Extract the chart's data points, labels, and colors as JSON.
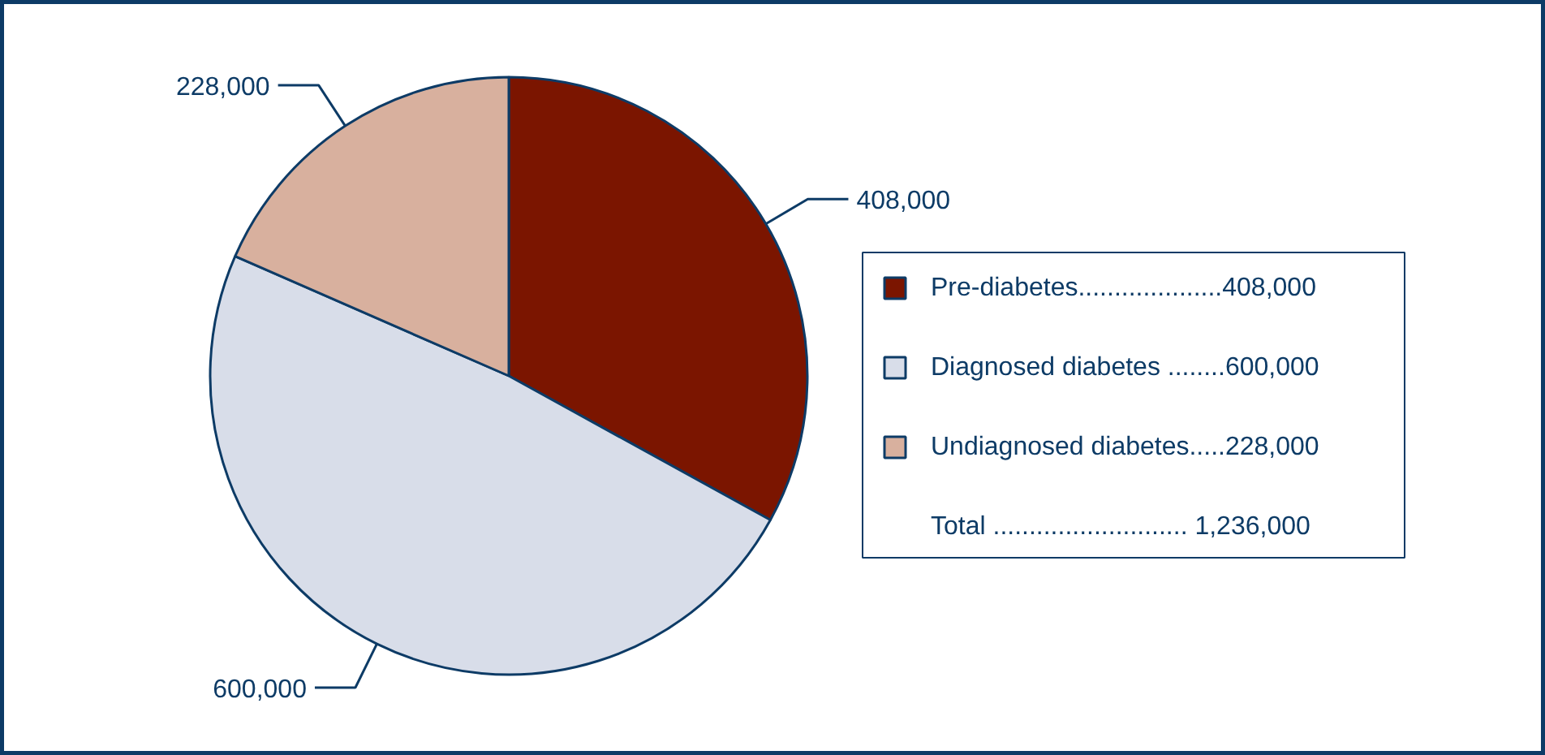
{
  "chart_data": {
    "type": "pie",
    "categories": [
      "Pre-diabetes....................408,000",
      "Diagnosed diabetes ........600,000",
      "Undiagnosed diabetes.....228,000"
    ],
    "values": [
      408000,
      600000,
      228000
    ],
    "value_labels": [
      "408,000",
      "600,000",
      "228,000"
    ],
    "colors": [
      "#7b1500",
      "#d8dde9",
      "#d8b09e"
    ],
    "legend": "right",
    "annotations": [
      "Total ........................... 1,236,000"
    ]
  }
}
